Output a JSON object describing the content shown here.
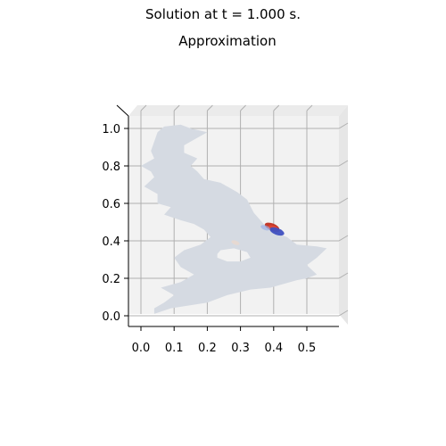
{
  "figure": {
    "suptitle": "Solution at t = 1.000 s.",
    "axes_title": "Approximation"
  },
  "chart_data": {
    "type": "surface-3d",
    "title": "Approximation",
    "xlabel": "",
    "ylabel": "",
    "view": "top-down",
    "xlim": [
      -0.04,
      0.6
    ],
    "ylim": [
      -0.03,
      1.08
    ],
    "x_ticks": [
      0.0,
      0.1,
      0.2,
      0.3,
      0.4,
      0.5
    ],
    "x_tick_labels": [
      "0.0",
      "0.1",
      "0.2",
      "0.3",
      "0.4",
      "0.5"
    ],
    "y_ticks": [
      0.0,
      0.2,
      0.4,
      0.6,
      0.8,
      1.0
    ],
    "y_tick_labels": [
      "0.0",
      "0.2",
      "0.4",
      "0.6",
      "0.8",
      "1.0"
    ],
    "grid": true,
    "colormap": "coolwarm",
    "domain_color": "#d5dae2",
    "pane_color": "#f2f2f2",
    "domain_outline": [
      [
        0.04,
        0.01
      ],
      [
        0.09,
        0.04
      ],
      [
        0.2,
        0.07
      ],
      [
        0.26,
        0.11
      ],
      [
        0.33,
        0.14
      ],
      [
        0.39,
        0.15
      ],
      [
        0.47,
        0.19
      ],
      [
        0.5,
        0.2
      ],
      [
        0.53,
        0.22
      ],
      [
        0.5,
        0.27
      ],
      [
        0.53,
        0.31
      ],
      [
        0.56,
        0.36
      ],
      [
        0.53,
        0.37
      ],
      [
        0.47,
        0.38
      ],
      [
        0.44,
        0.42
      ],
      [
        0.41,
        0.44
      ],
      [
        0.39,
        0.47
      ],
      [
        0.37,
        0.49
      ],
      [
        0.34,
        0.55
      ],
      [
        0.32,
        0.62
      ],
      [
        0.29,
        0.66
      ],
      [
        0.24,
        0.71
      ],
      [
        0.19,
        0.73
      ],
      [
        0.17,
        0.77
      ],
      [
        0.15,
        0.8
      ],
      [
        0.17,
        0.84
      ],
      [
        0.13,
        0.87
      ],
      [
        0.13,
        0.91
      ],
      [
        0.17,
        0.95
      ],
      [
        0.2,
        0.98
      ],
      [
        0.15,
        1.0
      ],
      [
        0.12,
        1.02
      ],
      [
        0.07,
        1.01
      ],
      [
        0.05,
        0.98
      ],
      [
        0.04,
        0.93
      ],
      [
        0.03,
        0.88
      ],
      [
        0.04,
        0.84
      ],
      [
        0.0,
        0.8
      ],
      [
        0.03,
        0.77
      ],
      [
        0.04,
        0.74
      ],
      [
        0.01,
        0.69
      ],
      [
        0.05,
        0.65
      ],
      [
        0.05,
        0.6
      ],
      [
        0.09,
        0.58
      ],
      [
        0.07,
        0.54
      ],
      [
        0.12,
        0.51
      ],
      [
        0.16,
        0.49
      ],
      [
        0.19,
        0.46
      ],
      [
        0.21,
        0.42
      ],
      [
        0.18,
        0.38
      ],
      [
        0.13,
        0.35
      ],
      [
        0.1,
        0.31
      ],
      [
        0.12,
        0.26
      ],
      [
        0.16,
        0.22
      ],
      [
        0.12,
        0.18
      ],
      [
        0.06,
        0.15
      ],
      [
        0.1,
        0.11
      ],
      [
        0.07,
        0.07
      ],
      [
        0.04,
        0.04
      ]
    ],
    "domain_hole": [
      [
        0.23,
        0.31
      ],
      [
        0.26,
        0.29
      ],
      [
        0.3,
        0.29
      ],
      [
        0.33,
        0.31
      ],
      [
        0.32,
        0.34
      ],
      [
        0.28,
        0.36
      ],
      [
        0.24,
        0.35
      ],
      [
        0.23,
        0.33
      ]
    ],
    "solution_features": [
      {
        "x": 0.395,
        "y": 0.475,
        "value": 0.9,
        "color": "#c03020"
      },
      {
        "x": 0.4,
        "y": 0.465,
        "value": 0.6,
        "color": "#e04a3a"
      },
      {
        "x": 0.41,
        "y": 0.45,
        "value": -0.9,
        "color": "#4050c0"
      },
      {
        "x": 0.375,
        "y": 0.47,
        "value": -0.3,
        "color": "#9ab0e8"
      },
      {
        "x": 0.285,
        "y": 0.39,
        "value": 0.15,
        "color": "#f0d8c8"
      }
    ]
  }
}
